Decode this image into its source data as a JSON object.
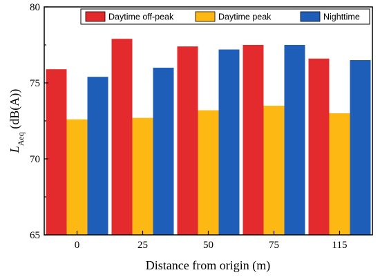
{
  "chart_data": {
    "type": "bar",
    "categories": [
      "0",
      "25",
      "50",
      "75",
      "115"
    ],
    "series": [
      {
        "name": "Daytime off-peak",
        "color": "#e32b2e",
        "values": [
          75.9,
          77.9,
          77.4,
          77.5,
          76.6
        ]
      },
      {
        "name": "Daytime peak",
        "color": "#fdb813",
        "values": [
          72.6,
          72.7,
          73.2,
          73.5,
          73.0
        ]
      },
      {
        "name": "Nighttime",
        "color": "#1f5eb8",
        "values": [
          75.4,
          76.0,
          77.2,
          77.5,
          76.5
        ]
      }
    ],
    "xlabel": "Distance from origin (m)",
    "ylabel": {
      "symbol": "L",
      "subscript": "Aeq",
      "unit": " (dB(A))"
    },
    "ylim": [
      65,
      80
    ],
    "yticks": [
      "65",
      "70",
      "75",
      "80"
    ],
    "grid": false,
    "legend_position": "top, inside plot"
  }
}
